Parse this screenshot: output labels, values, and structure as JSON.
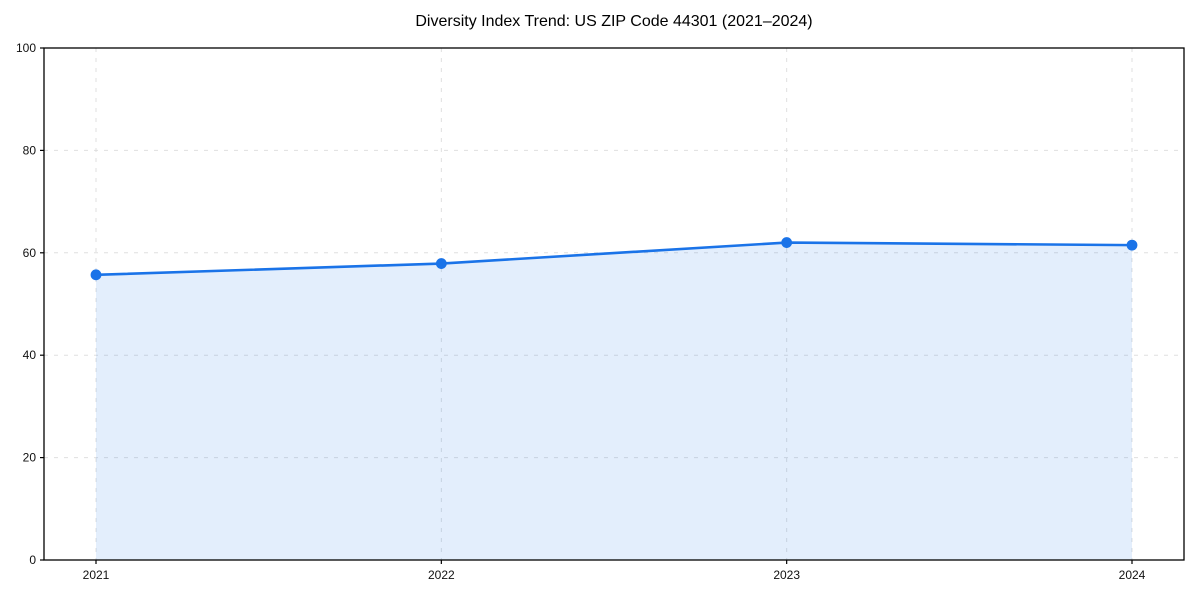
{
  "page": {
    "background_color": "#ffffff"
  },
  "chart_data": {
    "type": "area",
    "title": "Diversity Index Trend: US ZIP Code 44301 (2021–2024)",
    "categories": [
      "2021",
      "2022",
      "2023",
      "2024"
    ],
    "x": [
      2021,
      2022,
      2023,
      2024
    ],
    "series": [
      {
        "name": "Diversity Index",
        "values": [
          55.7,
          57.9,
          62.0,
          61.5
        ]
      }
    ],
    "xlabel": "",
    "ylabel": "",
    "ylim": [
      0,
      100
    ],
    "yticks": [
      0,
      20,
      40,
      60,
      80,
      100
    ],
    "grid": true,
    "grid_style": "dashed",
    "legend": "none",
    "colors": {
      "line": "#1a73e8",
      "marker": "#1a73e8",
      "fill": "#1a73e8",
      "fill_opacity": 0.12,
      "grid": "#dcdcdc",
      "spine": "#000000",
      "tick_label": "#111111",
      "title": "#000000"
    }
  }
}
